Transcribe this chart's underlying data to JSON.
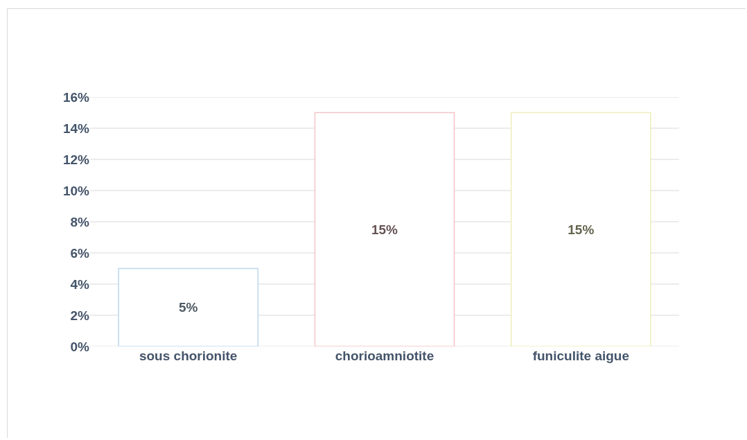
{
  "chart_data": {
    "type": "bar",
    "categories": [
      "sous chorionite",
      "chorioamniotite",
      "funiculite aigue"
    ],
    "values": [
      5,
      15,
      15
    ],
    "value_labels": [
      "5%",
      "15%",
      "15%"
    ],
    "colors": [
      "#bdd7ee",
      "#f4c4c8",
      "#eeeebb"
    ],
    "ylim": [
      0,
      16
    ],
    "yticks": [
      {
        "value": 0,
        "label": "0%"
      },
      {
        "value": 2,
        "label": "2%"
      },
      {
        "value": 4,
        "label": "4%"
      },
      {
        "value": 6,
        "label": "6%"
      },
      {
        "value": 8,
        "label": "8%"
      },
      {
        "value": 10,
        "label": "10%"
      },
      {
        "value": 12,
        "label": "12%"
      },
      {
        "value": 14,
        "label": "14%"
      },
      {
        "value": 16,
        "label": "16%"
      }
    ],
    "grid": "y"
  }
}
